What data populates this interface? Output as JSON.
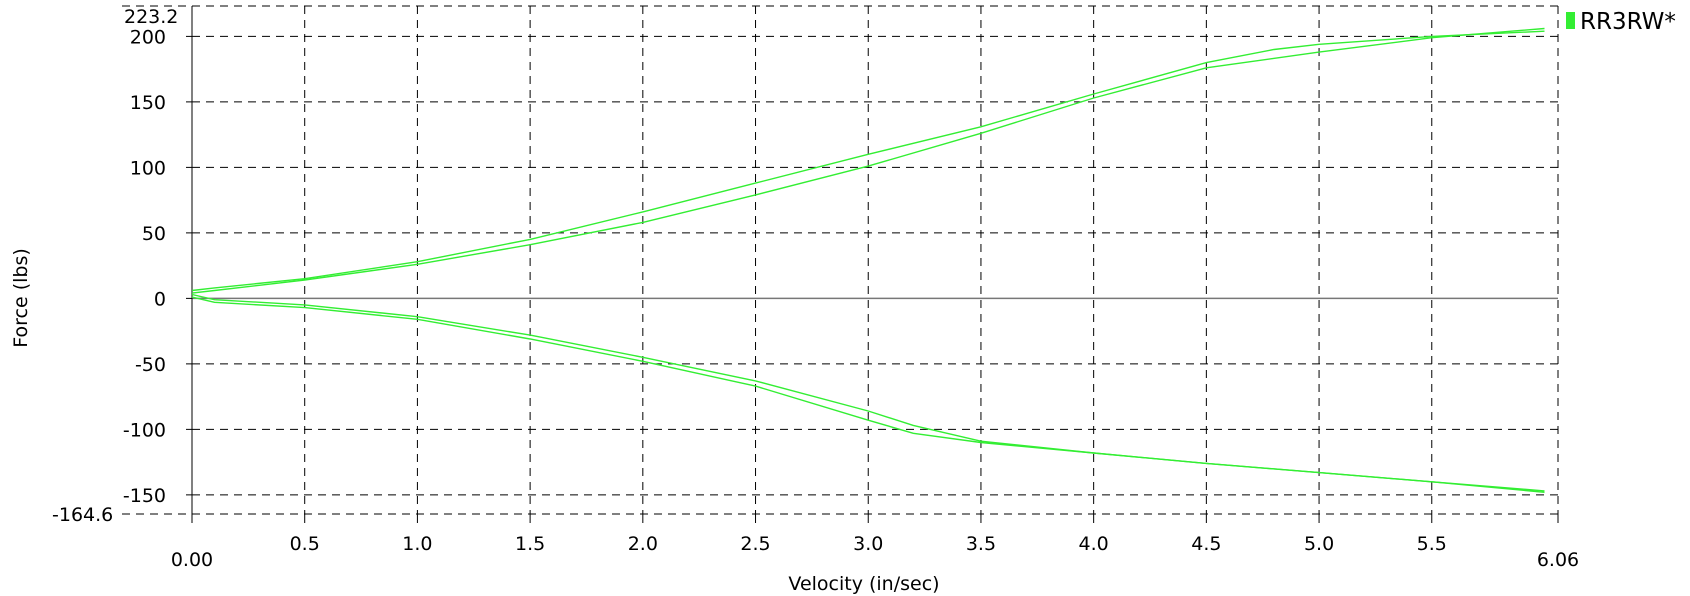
{
  "chart_data": {
    "type": "line",
    "xlabel": "Velocity (in/sec)",
    "ylabel": "Force (lbs)",
    "xlim": [
      0.0,
      6.06
    ],
    "ylim": [
      -164.6,
      223.2
    ],
    "x_ticks": [
      0.5,
      1.0,
      1.5,
      2.0,
      2.5,
      3.0,
      3.5,
      4.0,
      4.5,
      5.0,
      5.5
    ],
    "x_tick_labels": [
      "0.5",
      "1.0",
      "1.5",
      "2.0",
      "2.5",
      "3.0",
      "3.5",
      "4.0",
      "4.5",
      "5.0",
      "5.5"
    ],
    "x_min_label": "0.00",
    "x_max_label": "6.06",
    "y_ticks": [
      200,
      150,
      100,
      50,
      0,
      -50,
      -100,
      -150
    ],
    "y_tick_labels": [
      "200",
      "150",
      "100",
      "50",
      "0",
      "-50",
      "-100",
      "-150"
    ],
    "y_max_label": "223.2",
    "y_min_label": "-164.6",
    "grid": true,
    "legend": {
      "position": "top-right",
      "entries": [
        "RR3RW*"
      ]
    },
    "color": "#33ee33",
    "series": [
      {
        "name": "RR3RW*",
        "paths": [
          [
            [
              0.0,
              6
            ],
            [
              0.1,
              8
            ],
            [
              0.5,
              15
            ],
            [
              1.0,
              28
            ],
            [
              1.5,
              45
            ],
            [
              2.0,
              66
            ],
            [
              2.5,
              88
            ],
            [
              3.0,
              110
            ],
            [
              3.5,
              131
            ],
            [
              4.0,
              156
            ],
            [
              4.5,
              180
            ],
            [
              4.8,
              190
            ],
            [
              5.0,
              194
            ],
            [
              5.5,
              200
            ],
            [
              6.0,
              204
            ]
          ],
          [
            [
              6.0,
              206
            ],
            [
              5.5,
              199
            ],
            [
              5.0,
              188
            ],
            [
              4.5,
              176
            ],
            [
              4.0,
              153
            ],
            [
              3.5,
              126
            ],
            [
              3.0,
              101
            ],
            [
              2.5,
              79
            ],
            [
              2.0,
              58
            ],
            [
              1.5,
              41
            ],
            [
              1.0,
              26
            ],
            [
              0.5,
              14
            ],
            [
              0.1,
              6
            ],
            [
              0.0,
              4
            ]
          ],
          [
            [
              0.0,
              3
            ],
            [
              0.1,
              -1
            ],
            [
              0.5,
              -5
            ],
            [
              1.0,
              -14
            ],
            [
              1.5,
              -28
            ],
            [
              2.0,
              -45
            ],
            [
              2.5,
              -63
            ],
            [
              3.0,
              -86
            ],
            [
              3.2,
              -97
            ],
            [
              3.5,
              -109
            ],
            [
              4.0,
              -118
            ],
            [
              4.5,
              -126
            ],
            [
              5.0,
              -133
            ],
            [
              5.5,
              -140
            ],
            [
              6.0,
              -147
            ]
          ],
          [
            [
              6.0,
              -148
            ],
            [
              5.5,
              -140
            ],
            [
              5.0,
              -133
            ],
            [
              4.5,
              -126
            ],
            [
              4.0,
              -118
            ],
            [
              3.5,
              -110
            ],
            [
              3.2,
              -103
            ],
            [
              3.0,
              -93
            ],
            [
              2.5,
              -67
            ],
            [
              2.0,
              -48
            ],
            [
              1.5,
              -31
            ],
            [
              1.0,
              -16
            ],
            [
              0.5,
              -7
            ],
            [
              0.1,
              -3
            ],
            [
              0.0,
              1
            ]
          ]
        ]
      }
    ]
  }
}
